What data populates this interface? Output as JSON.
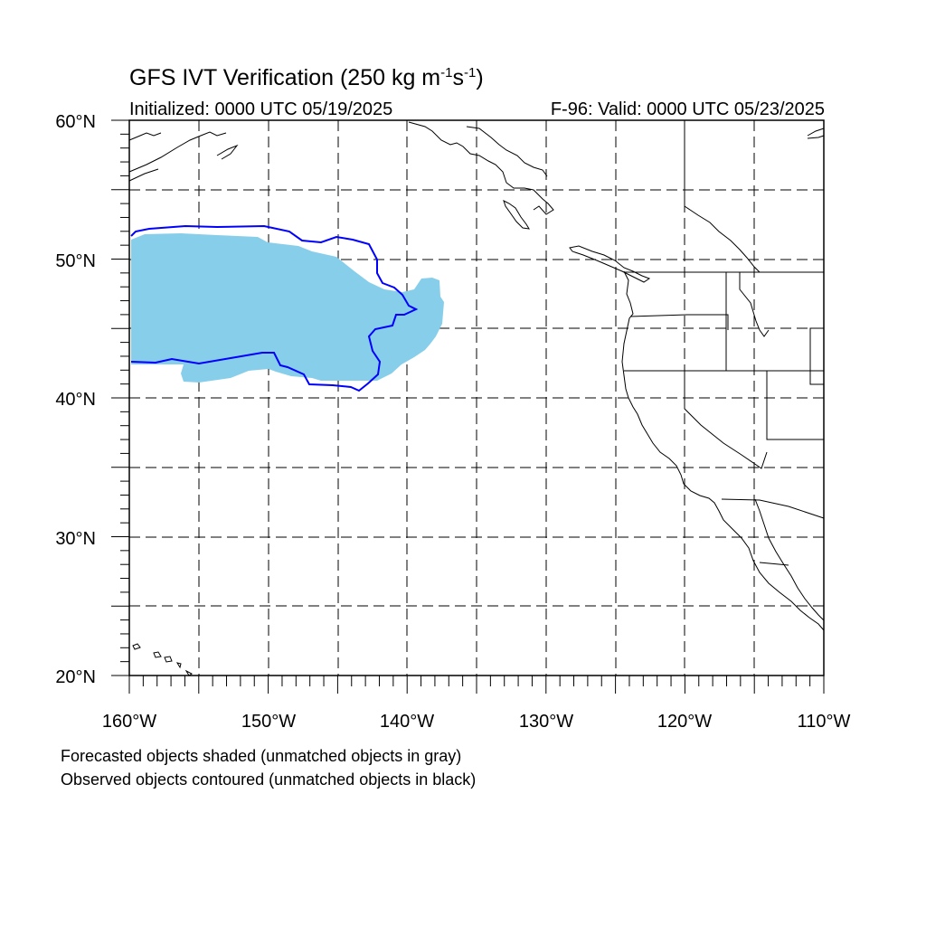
{
  "title": {
    "main": "GFS IVT Verification (250 kg m",
    "exp1": "-1",
    "mid": "s",
    "exp2": "-1",
    "end": ")"
  },
  "initialized": "Initialized: 0000 UTC 05/19/2025",
  "valid": "F-96: Valid: 0000 UTC 05/23/2025",
  "lat_labels": [
    "60°N",
    "50°N",
    "40°N",
    "30°N",
    "20°N"
  ],
  "lon_labels": [
    "160°W",
    "150°W",
    "140°W",
    "130°W",
    "120°W",
    "110°W"
  ],
  "notes": {
    "line1": "Forecasted objects shaded (unmatched objects in gray)",
    "line2": "Observed objects contoured (unmatched objects in black)"
  },
  "colors": {
    "forecast_fill": "#87ceeb",
    "observed_contour": "#0000ff",
    "grid": "#000000"
  },
  "map": {
    "lat_range": [
      20,
      60
    ],
    "lon_range": [
      -160,
      -110
    ]
  }
}
